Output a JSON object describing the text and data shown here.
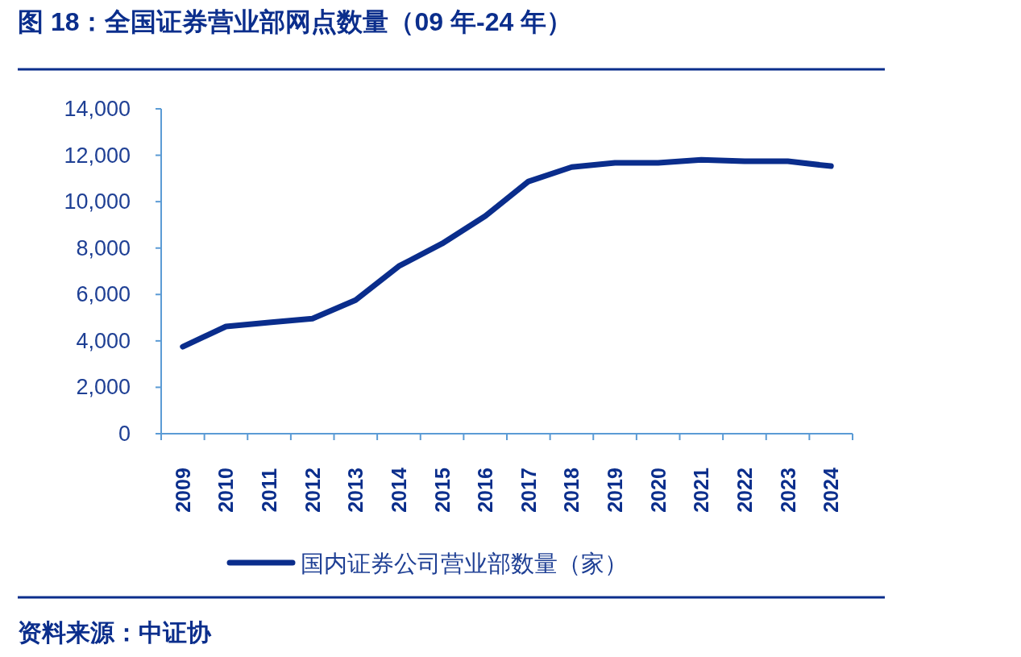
{
  "chart_data": {
    "type": "line",
    "title": "图 18：全国证券营业部网点数量（09 年-24 年）",
    "categories": [
      "2009",
      "2010",
      "2011",
      "2012",
      "2013",
      "2014",
      "2015",
      "2016",
      "2017",
      "2018",
      "2019",
      "2020",
      "2021",
      "2022",
      "2023",
      "2024"
    ],
    "series": [
      {
        "name": "国内证券公司营业部数量（家）",
        "color": "#0a2d8c",
        "values": [
          3750,
          4620,
          4790,
          4960,
          5760,
          7220,
          8190,
          9380,
          10870,
          11490,
          11670,
          11670,
          11800,
          11740,
          11740,
          11530
        ]
      }
    ],
    "ylim": [
      0,
      14000
    ],
    "yticks": [
      0,
      {
        "value": 2000,
        "label": "2,000"
      },
      {
        "value": 4000,
        "label": "4,000"
      },
      {
        "value": 6000,
        "label": "6,000"
      },
      {
        "value": 8000,
        "label": "8,000"
      },
      {
        "value": 10000,
        "label": "10,000"
      },
      {
        "value": 12000,
        "label": "12,000"
      },
      {
        "value": 14000,
        "label": "14,000"
      }
    ],
    "grid": false,
    "legend": "bottom",
    "marker": "none",
    "line_style": "solid",
    "annotations": [
      "资料来源：中证协"
    ]
  }
}
